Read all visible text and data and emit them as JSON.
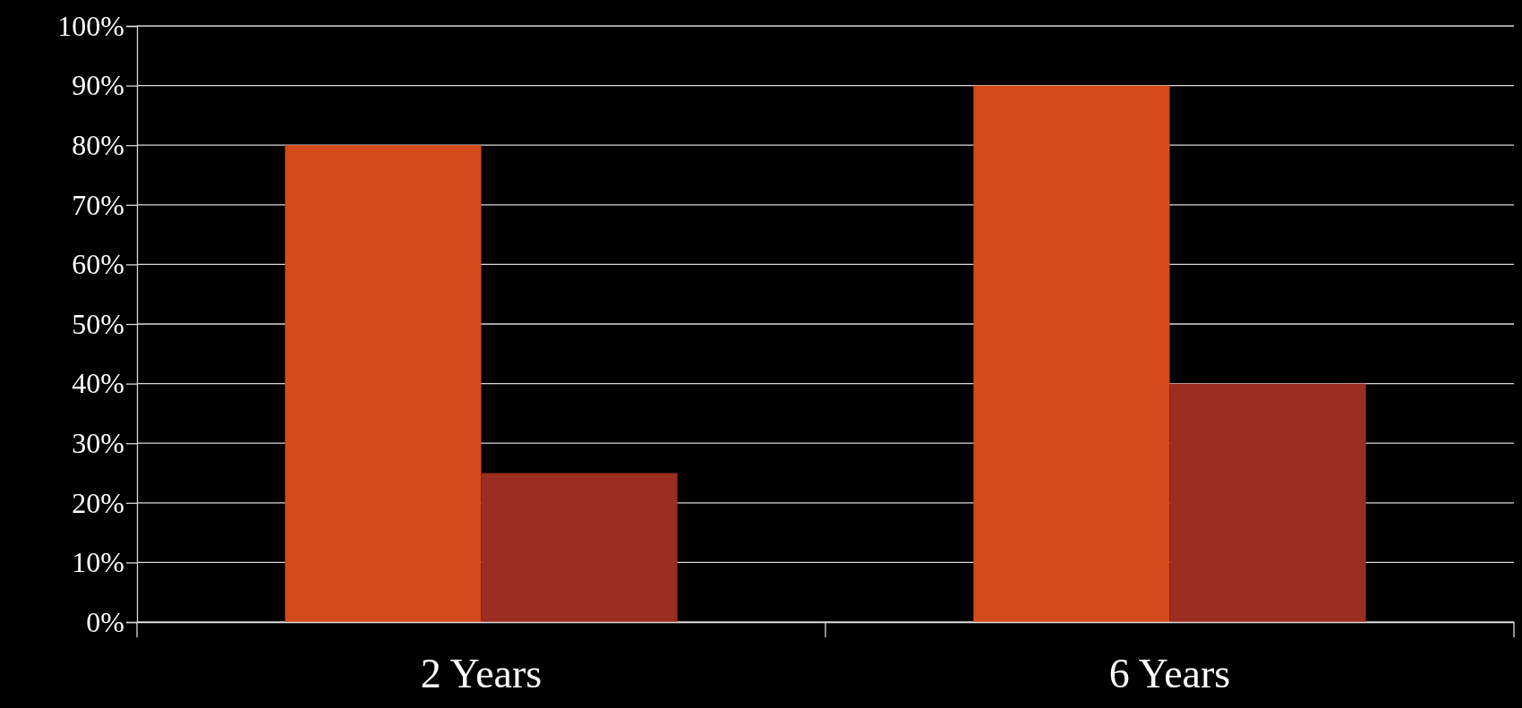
{
  "chart_data": {
    "type": "bar",
    "categories": [
      "2 Years",
      "6 Years"
    ],
    "series": [
      {
        "color": "#d44a1a",
        "values": [
          80,
          90
        ]
      },
      {
        "color": "#9a2e20",
        "values": [
          25,
          40
        ]
      }
    ],
    "ylim": [
      0,
      100
    ],
    "yticks": [
      {
        "value": 0,
        "label": "0%"
      },
      {
        "value": 10,
        "label": "10%"
      },
      {
        "value": 20,
        "label": "20%"
      },
      {
        "value": 30,
        "label": "30%"
      },
      {
        "value": 40,
        "label": "40%"
      },
      {
        "value": 50,
        "label": "50%"
      },
      {
        "value": 60,
        "label": "60%"
      },
      {
        "value": 70,
        "label": "70%"
      },
      {
        "value": 80,
        "label": "80%"
      },
      {
        "value": 90,
        "label": "90%"
      },
      {
        "value": 100,
        "label": "100%"
      }
    ],
    "grid": "y"
  }
}
